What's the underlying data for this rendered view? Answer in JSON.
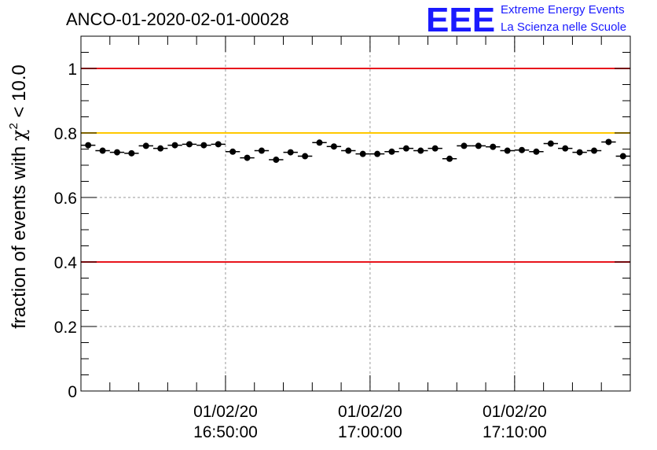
{
  "colors": {
    "red_line": "#e8141c",
    "yellow_line": "#ffc800",
    "marker": "#000000",
    "grid": "#9a9a9a",
    "logo": "#1a1aff"
  },
  "logo": {
    "mark": "EEE",
    "line1": "Extreme Energy Events",
    "line2": "La Scienza nelle Scuole"
  },
  "chart_data": {
    "type": "scatter",
    "title": "ANCO-01-2020-02-01-00028",
    "ylabel": "fraction of events with χ² < 10.0",
    "ylabel_parts": {
      "pre": "fraction of events with ",
      "chi": "χ",
      "sup": "2",
      "post": " < 10.0"
    },
    "xlabel": "",
    "xlim": [
      0,
      38
    ],
    "ylim": [
      0,
      1.1
    ],
    "grid": true,
    "x_ticks": [
      {
        "x": 10,
        "date": "01/02/20",
        "time": "16:50:00"
      },
      {
        "x": 20,
        "date": "01/02/20",
        "time": "17:00:00"
      },
      {
        "x": 30,
        "date": "01/02/20",
        "time": "17:10:00"
      }
    ],
    "y_ticks": [
      0,
      0.2,
      0.4,
      0.6,
      0.8,
      1
    ],
    "y_tick_labels": [
      "0",
      "0.2",
      "0.4",
      "0.6",
      "0.8",
      "1"
    ],
    "reference_lines": [
      {
        "y": 1.0,
        "color": "red"
      },
      {
        "y": 0.8,
        "color": "yellow"
      },
      {
        "y": 0.4,
        "color": "red"
      }
    ],
    "x": [
      0.5,
      1.5,
      2.5,
      3.5,
      4.5,
      5.5,
      6.5,
      7.5,
      8.5,
      9.5,
      10.5,
      11.5,
      12.5,
      13.5,
      14.5,
      15.5,
      16.5,
      17.5,
      18.5,
      19.5,
      20.5,
      21.5,
      22.5,
      23.5,
      24.5,
      25.5,
      26.5,
      27.5,
      28.5,
      29.5,
      30.5,
      31.5,
      32.5,
      33.5,
      34.5,
      35.5,
      36.5,
      37.5
    ],
    "values": [
      0.762,
      0.745,
      0.74,
      0.737,
      0.76,
      0.752,
      0.762,
      0.765,
      0.762,
      0.765,
      0.742,
      0.723,
      0.745,
      0.717,
      0.74,
      0.728,
      0.77,
      0.758,
      0.745,
      0.735,
      0.735,
      0.742,
      0.752,
      0.745,
      0.752,
      0.72,
      0.76,
      0.76,
      0.757,
      0.745,
      0.747,
      0.742,
      0.767,
      0.752,
      0.74,
      0.745,
      0.772,
      0.728
    ],
    "errors": [
      0.006,
      0.006,
      0.006,
      0.006,
      0.006,
      0.006,
      0.006,
      0.006,
      0.006,
      0.006,
      0.006,
      0.006,
      0.006,
      0.006,
      0.006,
      0.006,
      0.006,
      0.006,
      0.006,
      0.006,
      0.006,
      0.006,
      0.006,
      0.006,
      0.006,
      0.006,
      0.006,
      0.006,
      0.006,
      0.006,
      0.006,
      0.006,
      0.006,
      0.006,
      0.006,
      0.006,
      0.006,
      0.006
    ]
  }
}
